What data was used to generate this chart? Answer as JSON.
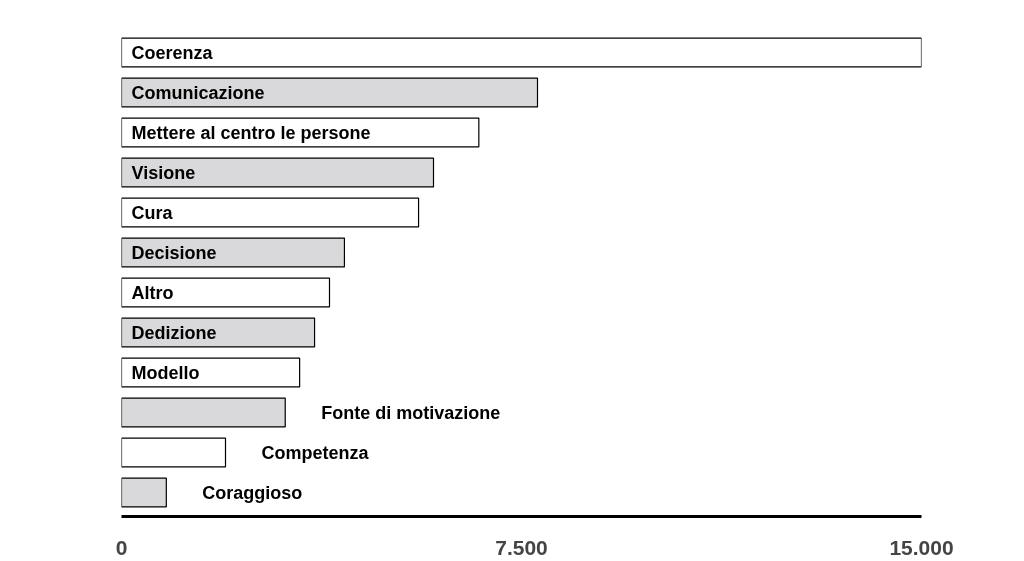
{
  "chart_data": {
    "type": "bar",
    "orientation": "horizontal",
    "categories": [
      "Coerenza",
      "Comunicazione",
      "Mettere al centro le persone",
      "Visione",
      "Cura",
      "Decisione",
      "Altro",
      "Dedizione",
      "Modello",
      "Fonte di motivazione",
      "Competenza",
      "Coraggioso"
    ],
    "values": [
      15000,
      7800,
      6700,
      5850,
      5570,
      4180,
      3900,
      3620,
      3340,
      3070,
      1950,
      840
    ],
    "colors": [
      "#ffffff",
      "#d9d9db",
      "#ffffff",
      "#d9d9db",
      "#ffffff",
      "#d9d9db",
      "#ffffff",
      "#d9d9db",
      "#ffffff",
      "#d9d9db",
      "#ffffff",
      "#d9d9db"
    ],
    "xlim": [
      0,
      15000
    ],
    "xticks": [
      0,
      {
        "value": 7500,
        "label": "7.500"
      },
      {
        "value": 15000,
        "label": "15.000"
      }
    ],
    "grid": false
  }
}
